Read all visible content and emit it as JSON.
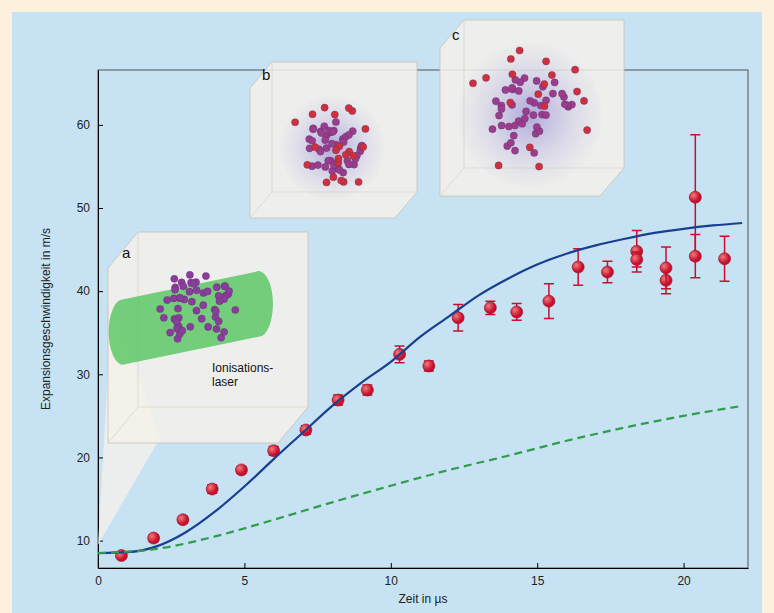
{
  "chart_data": {
    "type": "scatter",
    "x_label": "Zeit in µs",
    "y_label": "Expansionsgeschwindigkeit in m/s",
    "xlim": [
      0,
      22.2
    ],
    "ylim": [
      6.7,
      66.6
    ],
    "xticks": [
      0,
      5,
      10,
      15,
      20
    ],
    "yticks": [
      10,
      20,
      30,
      40,
      50,
      60
    ],
    "grid": false,
    "annotations": [
      "a",
      "b",
      "c",
      "Ionisations-laser"
    ],
    "series": [
      {
        "type": "scatter",
        "color": "#c8102e",
        "marker": "circle",
        "x": [
          0.8,
          1.9,
          2.9,
          3.9,
          4.9,
          6.0,
          7.1,
          8.2,
          9.2,
          10.3,
          11.3,
          12.3,
          13.4,
          14.3,
          15.4,
          16.4,
          17.4,
          18.4,
          18.4,
          19.4,
          19.4,
          20.4,
          20.4,
          21.4
        ],
        "values": [
          8.2,
          10.3,
          12.5,
          16.2,
          18.5,
          20.8,
          23.3,
          26.9,
          28.1,
          32.4,
          31.0,
          36.8,
          38.0,
          37.5,
          38.8,
          42.9,
          42.3,
          44.8,
          43.8,
          41.3,
          42.8,
          51.3,
          44.2,
          43.9
        ],
        "errors": [
          0.3,
          0.4,
          0.4,
          0.5,
          0.4,
          0.5,
          0.5,
          0.6,
          0.6,
          1.0,
          0.6,
          1.6,
          0.8,
          1.0,
          2.1,
          2.2,
          1.3,
          2.5,
          0.9,
          1.6,
          2.5,
          7.5,
          2.6,
          2.7
        ]
      },
      {
        "type": "line",
        "color": "#1b3f8f",
        "line_style": "solid",
        "x": [
          0,
          1,
          2,
          3,
          4,
          5,
          6,
          7,
          8,
          9,
          10,
          11,
          12,
          13,
          14,
          15,
          16,
          17,
          18,
          19,
          20,
          21,
          22
        ],
        "values": [
          8.5,
          8.6,
          9.3,
          11.0,
          13.5,
          16.5,
          19.8,
          23.0,
          26.2,
          29.0,
          31.5,
          34.5,
          37.0,
          39.5,
          41.5,
          43.2,
          44.5,
          45.5,
          46.3,
          47.0,
          47.5,
          47.9,
          48.2
        ]
      },
      {
        "type": "line",
        "color": "#2e9e4a",
        "line_style": "dashed",
        "x": [
          0,
          2,
          4,
          6,
          8,
          10,
          12,
          14,
          16,
          18,
          20,
          22
        ],
        "values": [
          8.5,
          9.0,
          10.5,
          12.5,
          14.6,
          16.6,
          18.5,
          20.2,
          22.0,
          23.6,
          25.0,
          26.2
        ]
      }
    ]
  }
}
